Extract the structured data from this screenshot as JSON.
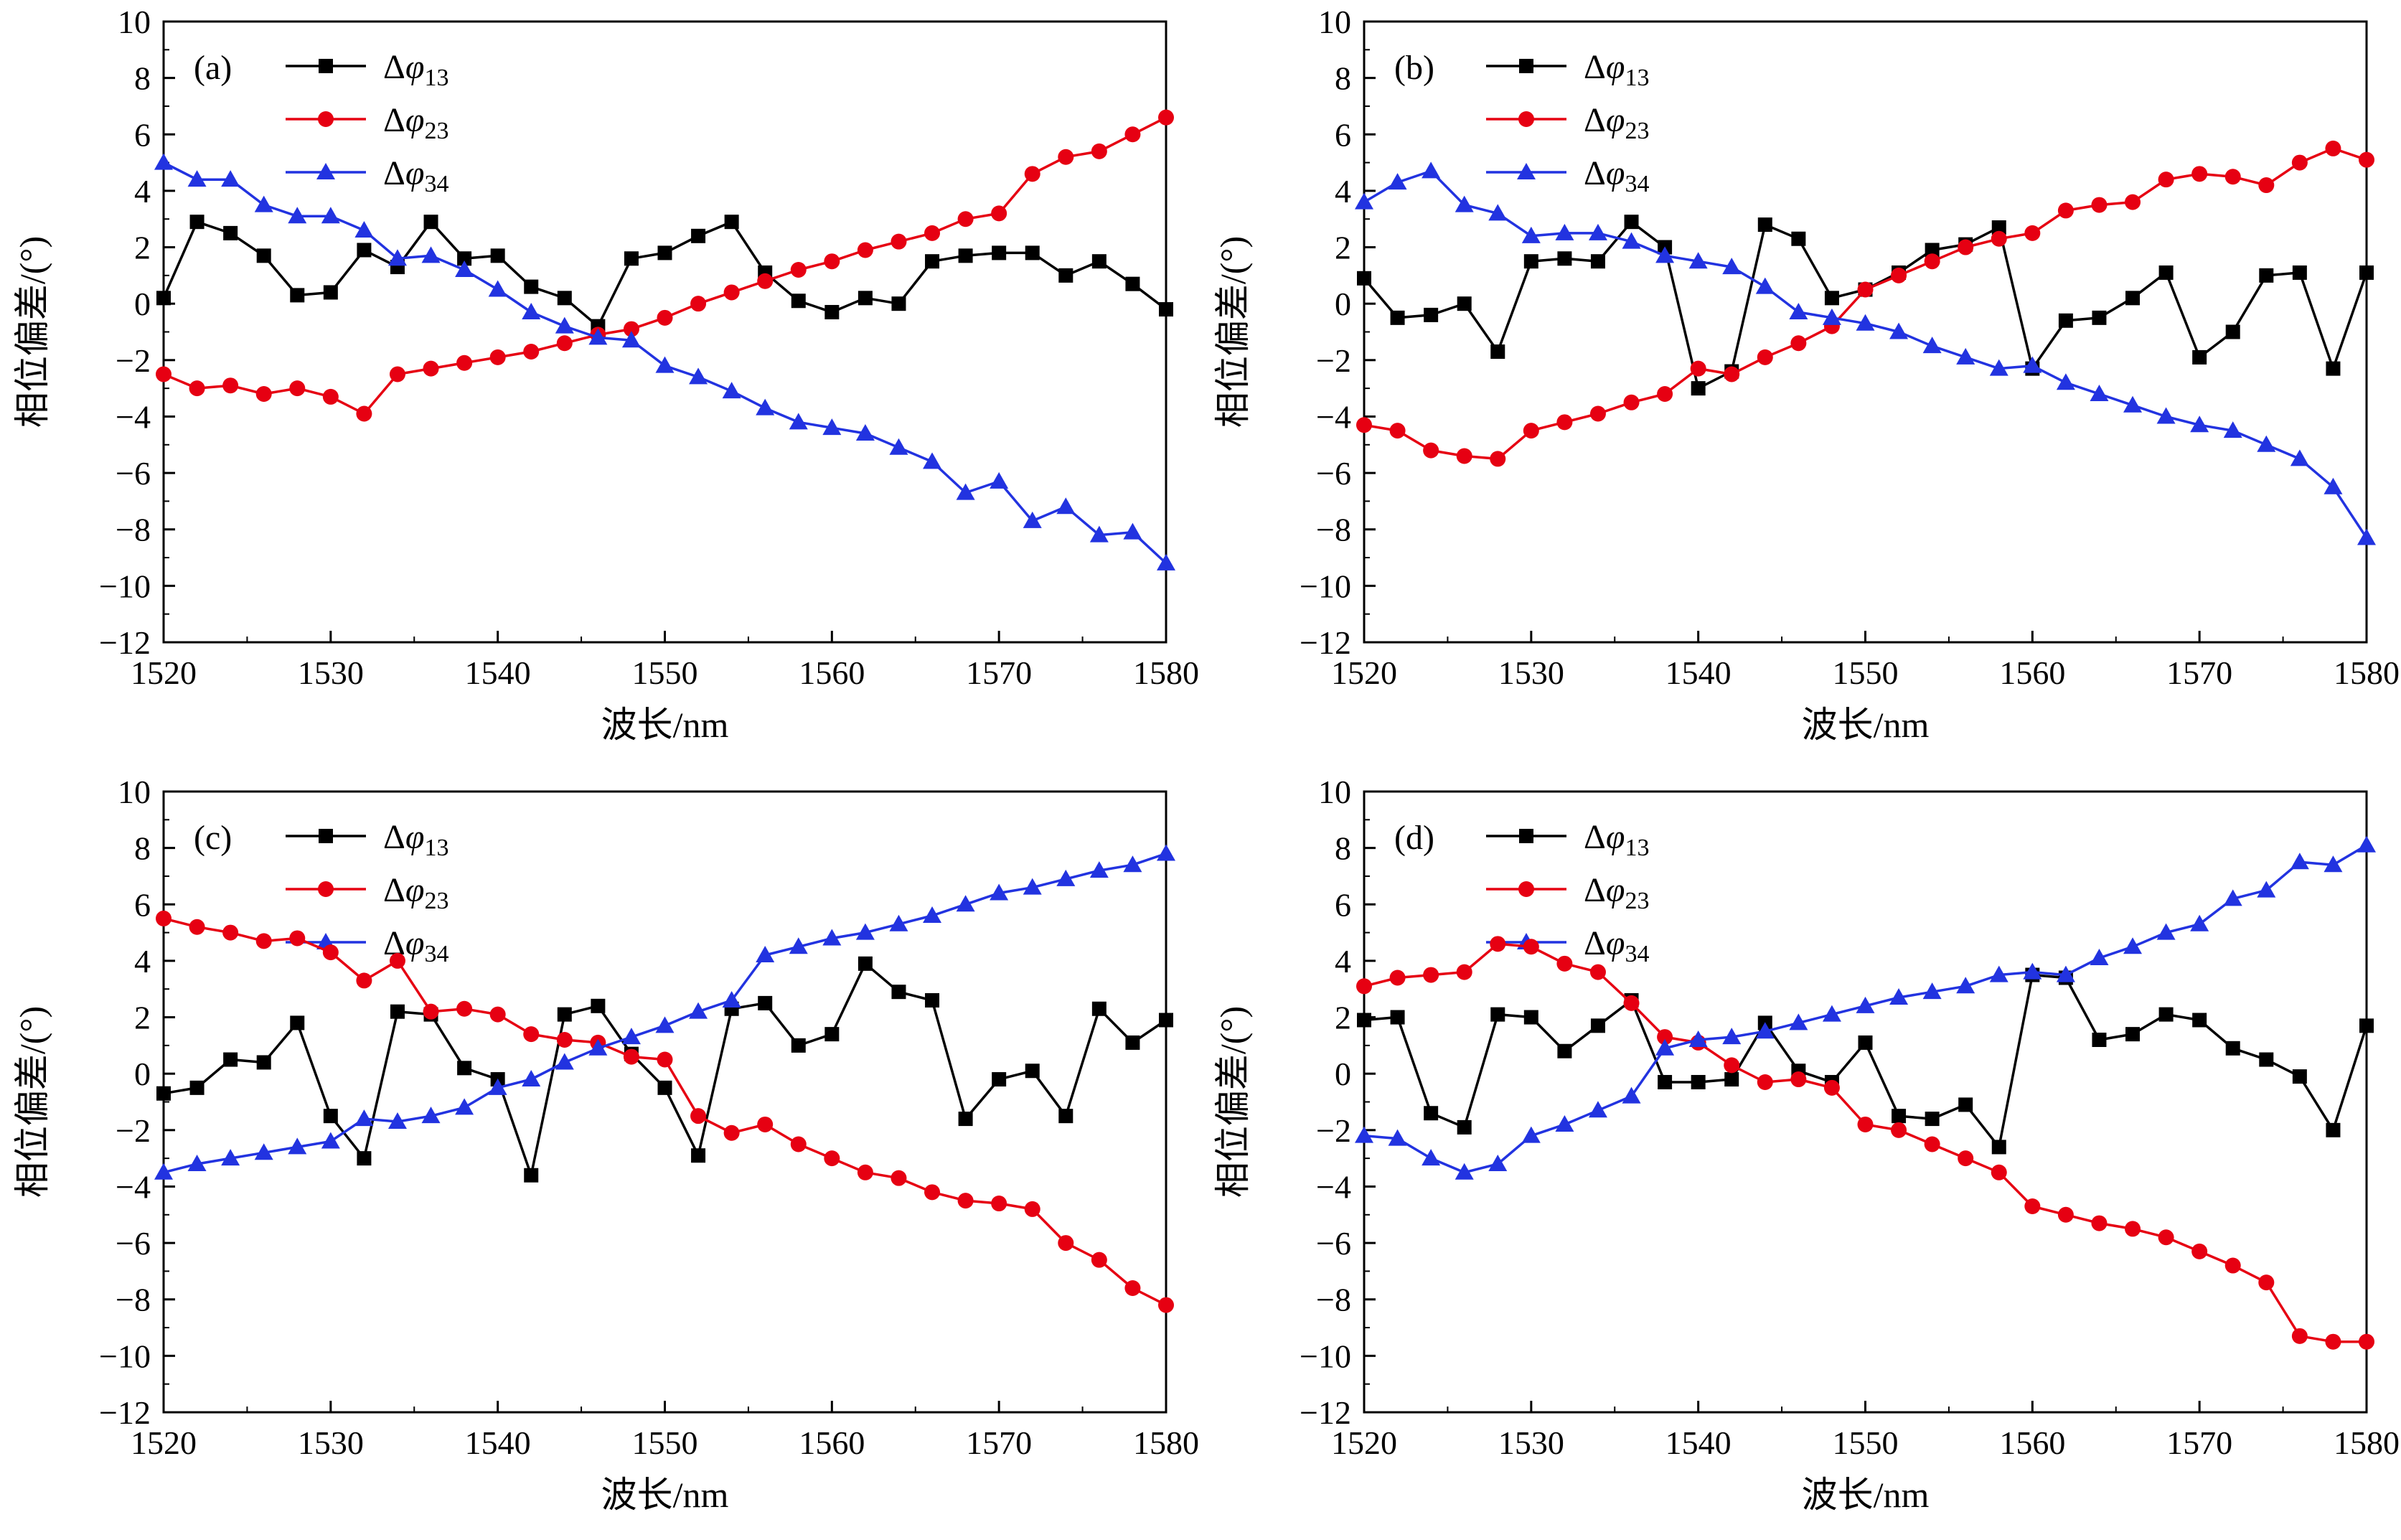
{
  "figure": {
    "background": "#ffffff",
    "panel_count": 4
  },
  "axes": {
    "xlabel": "波长/nm",
    "ylabel": "相位偏差/(°)",
    "xlim": [
      1520,
      1580
    ],
    "ylim": [
      -12,
      10
    ],
    "xticks": [
      1520,
      1530,
      1540,
      1550,
      1560,
      1570,
      1580
    ],
    "yticks": [
      -12,
      -10,
      -8,
      -6,
      -4,
      -2,
      0,
      2,
      4,
      6,
      8,
      10
    ],
    "x_minor_step": 5,
    "y_minor_step": 1,
    "grid": false
  },
  "legend": [
    {
      "prefix": "Δ",
      "phi": "φ",
      "sub": "13",
      "color": "#000000",
      "marker": "square"
    },
    {
      "prefix": "Δ",
      "phi": "φ",
      "sub": "23",
      "color": "#e60012",
      "marker": "circle"
    },
    {
      "prefix": "Δ",
      "phi": "φ",
      "sub": "34",
      "color": "#2233e0",
      "marker": "triangle"
    }
  ],
  "chart_data": [
    {
      "type": "line",
      "panel_label": "(a)",
      "title": "",
      "xlabel": "波长/nm",
      "ylabel": "相位偏差/(°)",
      "x": [
        1520,
        1522,
        1524,
        1526,
        1528,
        1530,
        1532,
        1534,
        1536,
        1538,
        1540,
        1542,
        1544,
        1546,
        1548,
        1550,
        1552,
        1554,
        1556,
        1558,
        1560,
        1562,
        1564,
        1566,
        1568,
        1570,
        1572,
        1574,
        1576,
        1578,
        1580
      ],
      "series": [
        {
          "name": "Δφ13",
          "values": [
            0.2,
            2.9,
            2.5,
            1.7,
            0.3,
            0.4,
            1.9,
            1.3,
            2.9,
            1.6,
            1.7,
            0.6,
            0.2,
            -0.8,
            1.6,
            1.8,
            2.4,
            2.9,
            1.1,
            0.1,
            -0.3,
            0.2,
            0.0,
            1.5,
            1.7,
            1.8,
            1.8,
            1.0,
            1.5,
            0.7,
            -0.2
          ]
        },
        {
          "name": "Δφ23",
          "values": [
            -2.5,
            -3.0,
            -2.9,
            -3.2,
            -3.0,
            -3.3,
            -3.9,
            -2.5,
            -2.3,
            -2.1,
            -1.9,
            -1.7,
            -1.4,
            -1.1,
            -0.9,
            -0.5,
            0.0,
            0.4,
            0.8,
            1.2,
            1.5,
            1.9,
            2.2,
            2.5,
            3.0,
            3.2,
            4.6,
            5.2,
            5.4,
            6.0,
            6.6
          ]
        },
        {
          "name": "Δφ34",
          "values": [
            5.0,
            4.4,
            4.4,
            3.5,
            3.1,
            3.1,
            2.6,
            1.6,
            1.7,
            1.2,
            0.5,
            -0.3,
            -0.8,
            -1.2,
            -1.3,
            -2.2,
            -2.6,
            -3.1,
            -3.7,
            -4.2,
            -4.4,
            -4.6,
            -5.1,
            -5.6,
            -6.7,
            -6.3,
            -7.7,
            -7.2,
            -8.2,
            -8.1,
            -9.2
          ]
        }
      ]
    },
    {
      "type": "line",
      "panel_label": "(b)",
      "title": "",
      "xlabel": "波长/nm",
      "ylabel": "相位偏差/(°)",
      "x": [
        1520,
        1522,
        1524,
        1526,
        1528,
        1530,
        1532,
        1534,
        1536,
        1538,
        1540,
        1542,
        1544,
        1546,
        1548,
        1550,
        1552,
        1554,
        1556,
        1558,
        1560,
        1562,
        1564,
        1566,
        1568,
        1570,
        1572,
        1574,
        1576,
        1578,
        1580
      ],
      "series": [
        {
          "name": "Δφ13",
          "values": [
            0.9,
            -0.5,
            -0.4,
            0.0,
            -1.7,
            1.5,
            1.6,
            1.5,
            2.9,
            2.0,
            -3.0,
            -2.4,
            2.8,
            2.3,
            0.2,
            0.5,
            1.1,
            1.9,
            2.1,
            2.7,
            -2.3,
            -0.6,
            -0.5,
            0.2,
            1.1,
            -1.9,
            -1.0,
            1.0,
            1.1,
            -2.3,
            1.1
          ]
        },
        {
          "name": "Δφ23",
          "values": [
            -4.3,
            -4.5,
            -5.2,
            -5.4,
            -5.5,
            -4.5,
            -4.2,
            -3.9,
            -3.5,
            -3.2,
            -2.3,
            -2.5,
            -1.9,
            -1.4,
            -0.8,
            0.5,
            1.0,
            1.5,
            2.0,
            2.3,
            2.5,
            3.3,
            3.5,
            3.6,
            4.4,
            4.6,
            4.5,
            4.2,
            5.0,
            5.5,
            5.1
          ]
        },
        {
          "name": "Δφ34",
          "values": [
            3.6,
            4.3,
            4.7,
            3.5,
            3.2,
            2.4,
            2.5,
            2.5,
            2.2,
            1.7,
            1.5,
            1.3,
            0.6,
            -0.3,
            -0.5,
            -0.7,
            -1.0,
            -1.5,
            -1.9,
            -2.3,
            -2.2,
            -2.8,
            -3.2,
            -3.6,
            -4.0,
            -4.3,
            -4.5,
            -5.0,
            -5.5,
            -6.5,
            -8.3
          ]
        }
      ]
    },
    {
      "type": "line",
      "panel_label": "(c)",
      "title": "",
      "xlabel": "波长/nm",
      "ylabel": "相位偏差/(°)",
      "x": [
        1520,
        1522,
        1524,
        1526,
        1528,
        1530,
        1532,
        1534,
        1536,
        1538,
        1540,
        1542,
        1544,
        1546,
        1548,
        1550,
        1552,
        1554,
        1556,
        1558,
        1560,
        1562,
        1564,
        1566,
        1568,
        1570,
        1572,
        1574,
        1576,
        1578,
        1580
      ],
      "series": [
        {
          "name": "Δφ13",
          "values": [
            -0.7,
            -0.5,
            0.5,
            0.4,
            1.8,
            -1.5,
            -3.0,
            2.2,
            2.1,
            0.2,
            -0.2,
            -3.6,
            2.1,
            2.4,
            0.7,
            -0.5,
            -2.9,
            2.3,
            2.5,
            1.0,
            1.4,
            3.9,
            2.9,
            2.6,
            -1.6,
            -0.2,
            0.1,
            -1.5,
            2.3,
            1.1,
            1.9
          ]
        },
        {
          "name": "Δφ23",
          "values": [
            5.5,
            5.2,
            5.0,
            4.7,
            4.8,
            4.3,
            3.3,
            4.0,
            2.2,
            2.3,
            2.1,
            1.4,
            1.2,
            1.1,
            0.6,
            0.5,
            -1.5,
            -2.1,
            -1.8,
            -2.5,
            -3.0,
            -3.5,
            -3.7,
            -4.2,
            -4.5,
            -4.6,
            -4.8,
            -6.0,
            -6.6,
            -7.6,
            -8.2
          ]
        },
        {
          "name": "Δφ34",
          "values": [
            -3.5,
            -3.2,
            -3.0,
            -2.8,
            -2.6,
            -2.4,
            -1.6,
            -1.7,
            -1.5,
            -1.2,
            -0.5,
            -0.2,
            0.4,
            0.9,
            1.3,
            1.7,
            2.2,
            2.6,
            4.2,
            4.5,
            4.8,
            5.0,
            5.3,
            5.6,
            6.0,
            6.4,
            6.6,
            6.9,
            7.2,
            7.4,
            7.8
          ]
        }
      ]
    },
    {
      "type": "line",
      "panel_label": "(d)",
      "title": "",
      "xlabel": "波长/nm",
      "ylabel": "相位偏差/(°)",
      "x": [
        1520,
        1522,
        1524,
        1526,
        1528,
        1530,
        1532,
        1534,
        1536,
        1538,
        1540,
        1542,
        1544,
        1546,
        1548,
        1550,
        1552,
        1554,
        1556,
        1558,
        1560,
        1562,
        1564,
        1566,
        1568,
        1570,
        1572,
        1574,
        1576,
        1578,
        1580
      ],
      "series": [
        {
          "name": "Δφ13",
          "values": [
            1.9,
            2.0,
            -1.4,
            -1.9,
            2.1,
            2.0,
            0.8,
            1.7,
            2.6,
            -0.3,
            -0.3,
            -0.2,
            1.8,
            0.1,
            -0.3,
            1.1,
            -1.5,
            -1.6,
            -1.1,
            -2.6,
            3.5,
            3.4,
            1.2,
            1.4,
            2.1,
            1.9,
            0.9,
            0.5,
            -0.1,
            -2.0,
            1.7
          ]
        },
        {
          "name": "Δφ23",
          "values": [
            3.1,
            3.4,
            3.5,
            3.6,
            4.6,
            4.5,
            3.9,
            3.6,
            2.5,
            1.3,
            1.1,
            0.3,
            -0.3,
            -0.2,
            -0.5,
            -1.8,
            -2.0,
            -2.5,
            -3.0,
            -3.5,
            -4.7,
            -5.0,
            -5.3,
            -5.5,
            -5.8,
            -6.3,
            -6.8,
            -7.4,
            -9.3,
            -9.5,
            -9.5
          ]
        },
        {
          "name": "Δφ34",
          "values": [
            -2.2,
            -2.3,
            -3.0,
            -3.5,
            -3.2,
            -2.2,
            -1.8,
            -1.3,
            -0.8,
            0.9,
            1.2,
            1.3,
            1.5,
            1.8,
            2.1,
            2.4,
            2.7,
            2.9,
            3.1,
            3.5,
            3.6,
            3.5,
            4.1,
            4.5,
            5.0,
            5.3,
            6.2,
            6.5,
            7.5,
            7.4,
            8.1
          ]
        }
      ]
    }
  ]
}
